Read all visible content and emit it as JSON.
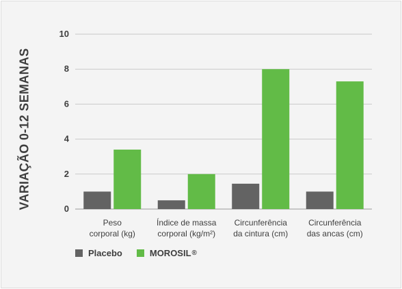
{
  "chart_data": {
    "type": "bar",
    "ylabel": "VARIAÇÃO 0-12 SEMANAS",
    "categories": [
      [
        "Peso",
        "corporal (kg)"
      ],
      [
        "Índice de massa",
        "corporal (kg/m²)"
      ],
      [
        "Circunferência",
        "da cintura (cm)"
      ],
      [
        "Circunferência",
        "das ancas (cm)"
      ]
    ],
    "series": [
      {
        "name": "Placebo",
        "color": "#636363",
        "values": [
          1.0,
          0.5,
          1.45,
          1.0
        ]
      },
      {
        "name": "MOROSIL",
        "color": "#62bb47",
        "values": [
          3.4,
          2.0,
          8.0,
          7.3
        ]
      }
    ],
    "ylim": [
      0,
      10
    ],
    "yticks": [
      0,
      2,
      4,
      6,
      8,
      10
    ],
    "grid": true,
    "legend_position": "bottom-left"
  },
  "legend": {
    "placebo_label": "Placebo",
    "morosil_label": "MOROSIL",
    "registered_mark": "®"
  }
}
